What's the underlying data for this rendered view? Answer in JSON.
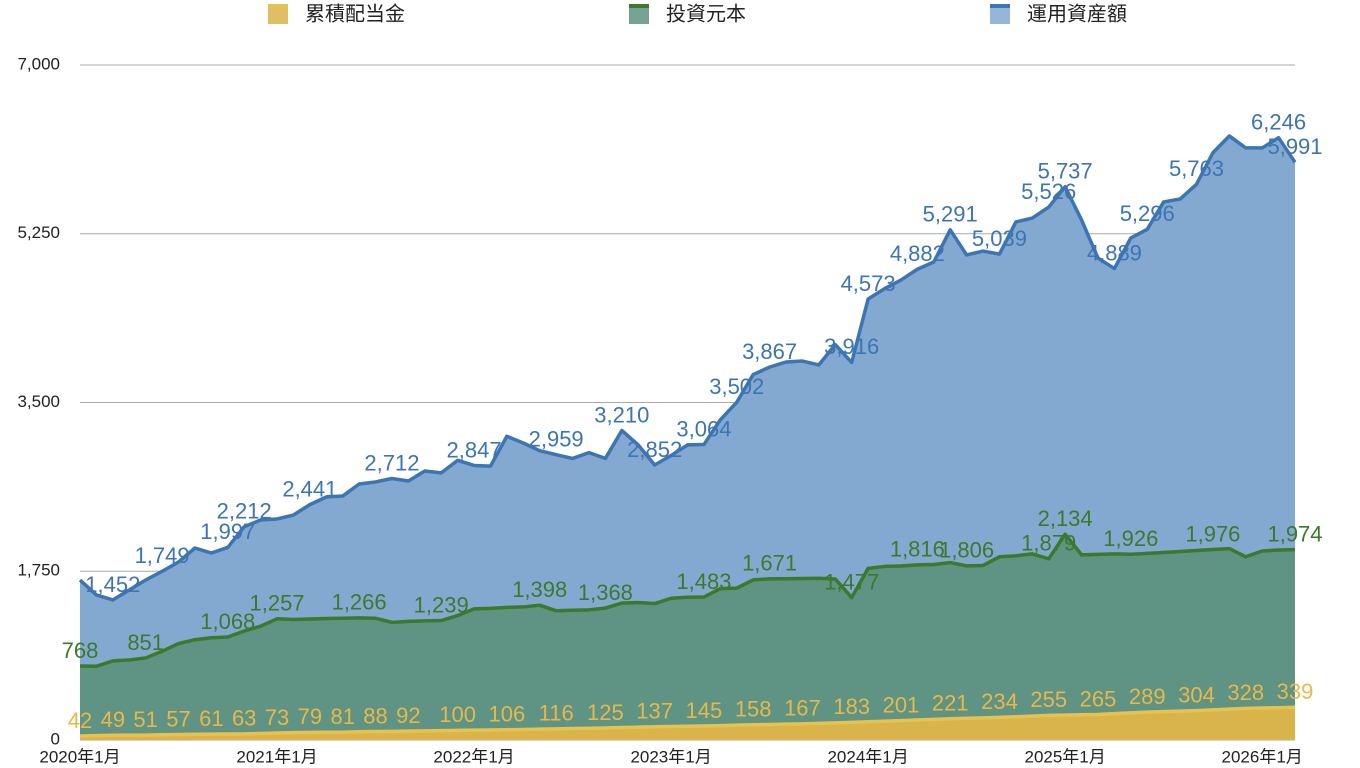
{
  "chart_data": {
    "type": "area",
    "legend": "top",
    "grid": true,
    "categories": [
      "2020年1月",
      null,
      null,
      null,
      null,
      null,
      null,
      null,
      null,
      null,
      null,
      null,
      "2021年1月",
      null,
      null,
      null,
      null,
      null,
      null,
      null,
      null,
      null,
      null,
      null,
      "2022年1月",
      null,
      null,
      null,
      null,
      null,
      null,
      null,
      null,
      null,
      null,
      null,
      "2023年1月",
      null,
      null,
      null,
      null,
      null,
      null,
      null,
      null,
      null,
      null,
      null,
      "2024年1月",
      null,
      null,
      null,
      null,
      null,
      null,
      null,
      null,
      null,
      null,
      null,
      "2025年1月",
      null,
      null,
      null,
      null,
      null,
      null,
      null,
      null,
      null,
      null,
      null,
      "2026年1月",
      null,
      null
    ],
    "ylim": [
      0,
      7000
    ],
    "yticks": [
      0,
      {
        "value": 1750,
        "label": "1,750"
      },
      {
        "value": 3500,
        "label": "3,500"
      },
      {
        "value": 5250,
        "label": "5,250"
      },
      {
        "value": 7000,
        "label": "7,000"
      }
    ],
    "series": [
      {
        "name": "累積配当金",
        "color": "#e8c250",
        "fill": "#d8b44a",
        "label_color": "#e8b84a",
        "values": [
          42,
          45,
          49,
          50,
          51,
          54,
          57,
          59,
          61,
          62,
          63,
          68,
          73,
          76,
          79,
          80,
          81,
          85,
          88,
          90,
          92,
          95,
          97,
          100,
          102,
          104,
          106,
          109,
          113,
          116,
          119,
          122,
          125,
          129,
          133,
          137,
          140,
          142,
          145,
          149,
          154,
          158,
          161,
          164,
          167,
          172,
          178,
          183,
          189,
          195,
          201,
          208,
          214,
          221,
          225,
          230,
          234,
          241,
          248,
          255,
          258,
          262,
          265,
          273,
          281,
          289,
          294,
          299,
          304,
          312,
          320,
          328,
          332,
          335,
          339
        ],
        "value_labels": [
          "42",
          null,
          "49",
          null,
          "51",
          null,
          "57",
          null,
          "61",
          null,
          "63",
          null,
          "73",
          null,
          "79",
          null,
          "81",
          null,
          "88",
          null,
          "92",
          null,
          null,
          "100",
          null,
          null,
          "106",
          null,
          null,
          "116",
          null,
          null,
          "125",
          null,
          null,
          "137",
          null,
          null,
          "145",
          null,
          null,
          "158",
          null,
          null,
          "167",
          null,
          null,
          "183",
          null,
          null,
          "201",
          null,
          null,
          "221",
          null,
          null,
          "234",
          null,
          null,
          "255",
          null,
          null,
          "265",
          null,
          null,
          "289",
          null,
          null,
          "304",
          null,
          null,
          "328",
          null,
          null,
          "339"
        ]
      },
      {
        "name": "投資元本",
        "color": "#3a7a2a",
        "fill": "#5f9383",
        "label_color": "#3a7a2a",
        "values": [
          768,
          765,
          820,
          830,
          851,
          920,
          1000,
          1040,
          1060,
          1068,
          1130,
          1180,
          1257,
          1250,
          1255,
          1260,
          1262,
          1266,
          1262,
          1220,
          1230,
          1235,
          1239,
          1290,
          1360,
          1365,
          1375,
          1380,
          1398,
          1340,
          1345,
          1350,
          1368,
          1420,
          1425,
          1415,
          1470,
          1480,
          1483,
          1570,
          1575,
          1660,
          1671,
          1672,
          1675,
          1677,
          1670,
          1477,
          1780,
          1800,
          1805,
          1816,
          1820,
          1840,
          1806,
          1810,
          1900,
          1910,
          1930,
          1879,
          2134,
          1920,
          1925,
          1930,
          1926,
          1935,
          1945,
          1955,
          1965,
          1976,
          1985,
          1900,
          1960,
          1970,
          1974
        ],
        "value_labels": [
          "768",
          null,
          null,
          null,
          "851",
          null,
          null,
          null,
          null,
          "1,068",
          null,
          null,
          "1,257",
          null,
          null,
          null,
          null,
          "1,266",
          null,
          null,
          null,
          null,
          "1,239",
          null,
          null,
          null,
          null,
          null,
          "1,398",
          null,
          null,
          null,
          "1,368",
          null,
          null,
          null,
          null,
          null,
          "1,483",
          null,
          null,
          null,
          "1,671",
          null,
          null,
          null,
          null,
          "1,477",
          null,
          null,
          null,
          "1,816",
          null,
          null,
          "1,806",
          null,
          null,
          null,
          null,
          "1,879",
          "2,134",
          null,
          null,
          null,
          "1,926",
          null,
          null,
          null,
          null,
          "1,976",
          null,
          null,
          null,
          null,
          "1,974"
        ]
      },
      {
        "name": "運用資産額",
        "color": "#3c74b4",
        "fill": "#84a9d1",
        "label_color": "#3c74b4",
        "values": [
          1659,
          1504,
          1452,
          1556,
          1659,
          1749,
          1846,
          1991,
          1939,
          1997,
          2212,
          2281,
          2292,
          2333,
          2441,
          2520,
          2530,
          2655,
          2676,
          2712,
          2686,
          2790,
          2770,
          2900,
          2847,
          2840,
          3150,
          3080,
          3000,
          2959,
          2920,
          2980,
          2920,
          3210,
          3060,
          2852,
          2950,
          3060,
          3064,
          3320,
          3502,
          3790,
          3867,
          3920,
          3930,
          3890,
          4100,
          3916,
          4573,
          4680,
          4770,
          4882,
          4957,
          5291,
          5030,
          5070,
          5039,
          5372,
          5413,
          5526,
          5737,
          5393,
          4998,
          4889,
          5206,
          5296,
          5580,
          5610,
          5763,
          6090,
          6264,
          6140,
          6140,
          6246,
          5991
        ],
        "value_labels": [
          null,
          null,
          "1,452",
          null,
          null,
          "1,749",
          null,
          null,
          null,
          "1,997",
          "2,212",
          null,
          null,
          null,
          "2,441",
          null,
          null,
          null,
          null,
          "2,712",
          null,
          null,
          null,
          null,
          "2,847",
          null,
          null,
          null,
          null,
          "2,959",
          null,
          null,
          null,
          "3,210",
          null,
          "2,852",
          null,
          null,
          "3,064",
          null,
          "3,502",
          null,
          "3,867",
          null,
          null,
          null,
          null,
          "3,916",
          "4,573",
          null,
          null,
          "4,882",
          null,
          "5,291",
          null,
          null,
          "5,039",
          null,
          null,
          "5,526",
          "5,737",
          null,
          null,
          "4,889",
          null,
          "5,296",
          null,
          null,
          "5,763",
          null,
          null,
          null,
          null,
          "6,246",
          "5,991"
        ]
      }
    ]
  }
}
